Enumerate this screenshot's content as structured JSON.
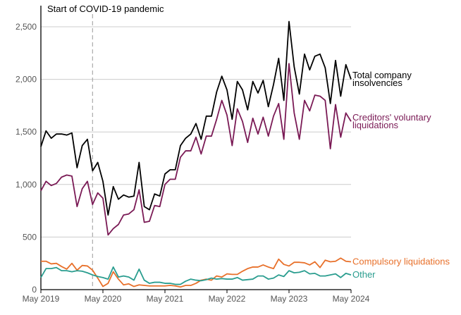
{
  "chart_data": {
    "type": "line",
    "title": "",
    "xlabel": "",
    "ylabel": "",
    "ylim": [
      0,
      2650
    ],
    "yticks": [
      0,
      500,
      1000,
      1500,
      2000,
      2500
    ],
    "ytick_labels": [
      "0",
      "500",
      "1,000",
      "1,500",
      "2,000",
      "2,500"
    ],
    "x_start": "2019-05",
    "xticks": [
      0,
      12,
      24,
      36,
      48,
      60
    ],
    "xtick_labels": [
      "May 2019",
      "May 2020",
      "May 2021",
      "May 2022",
      "May 2023",
      "May 2024"
    ],
    "annotation": {
      "label": "Start of COVID-19 pandemic",
      "x": 10
    },
    "grid": true,
    "series": [
      {
        "name": "Total company insolvencies",
        "label_lines": [
          "Total company",
          "insolvencies"
        ],
        "color": "#000000",
        "values": [
          1360,
          1510,
          1440,
          1480,
          1480,
          1470,
          1490,
          1160,
          1370,
          1430,
          1130,
          1210,
          1030,
          710,
          980,
          860,
          900,
          880,
          890,
          1210,
          790,
          760,
          910,
          890,
          1100,
          1140,
          1140,
          1370,
          1440,
          1480,
          1580,
          1430,
          1650,
          1650,
          1880,
          2030,
          1900,
          1620,
          1980,
          1900,
          1710,
          1980,
          1870,
          1990,
          1740,
          1950,
          2200,
          1800,
          2550,
          2120,
          1860,
          2240,
          2090,
          2220,
          2240,
          2110,
          1770,
          2180,
          1840,
          2140,
          2000
        ]
      },
      {
        "name": "Creditors' voluntary liquidations",
        "label_lines": [
          "Creditors' voluntary",
          "liquidations"
        ],
        "color": "#7a1a55",
        "values": [
          940,
          1030,
          990,
          1010,
          1070,
          1090,
          1080,
          790,
          960,
          1030,
          810,
          920,
          870,
          520,
          580,
          620,
          710,
          720,
          760,
          950,
          640,
          650,
          800,
          790,
          1000,
          1050,
          1050,
          1260,
          1320,
          1320,
          1450,
          1290,
          1460,
          1460,
          1620,
          1800,
          1660,
          1370,
          1720,
          1600,
          1400,
          1630,
          1480,
          1640,
          1460,
          1650,
          1770,
          1430,
          2150,
          1680,
          1430,
          1800,
          1700,
          1850,
          1840,
          1800,
          1340,
          1760,
          1450,
          1680,
          1600
        ]
      },
      {
        "name": "Compulsory liquidations",
        "label_lines": [
          "Compulsory liquidations"
        ],
        "color": "#e8702a",
        "values": [
          270,
          270,
          245,
          250,
          220,
          195,
          250,
          185,
          230,
          225,
          185,
          110,
          30,
          60,
          170,
          100,
          45,
          55,
          30,
          45,
          40,
          35,
          35,
          35,
          35,
          40,
          35,
          25,
          40,
          40,
          60,
          90,
          100,
          90,
          130,
          120,
          150,
          145,
          145,
          175,
          200,
          215,
          215,
          235,
          215,
          200,
          290,
          240,
          225,
          260,
          260,
          255,
          235,
          265,
          210,
          280,
          265,
          270,
          300,
          270,
          265
        ]
      },
      {
        "name": "Other",
        "label_lines": [
          "Other"
        ],
        "color": "#2a9d8f",
        "values": [
          115,
          200,
          200,
          210,
          180,
          180,
          170,
          180,
          175,
          160,
          140,
          125,
          115,
          100,
          215,
          120,
          130,
          120,
          90,
          195,
          90,
          60,
          70,
          70,
          60,
          60,
          50,
          50,
          80,
          100,
          90,
          85,
          95,
          110,
          100,
          105,
          100,
          100,
          115,
          90,
          95,
          100,
          130,
          130,
          100,
          110,
          140,
          125,
          180,
          160,
          165,
          180,
          150,
          155,
          130,
          130,
          140,
          150,
          115,
          155,
          140
        ]
      }
    ]
  }
}
